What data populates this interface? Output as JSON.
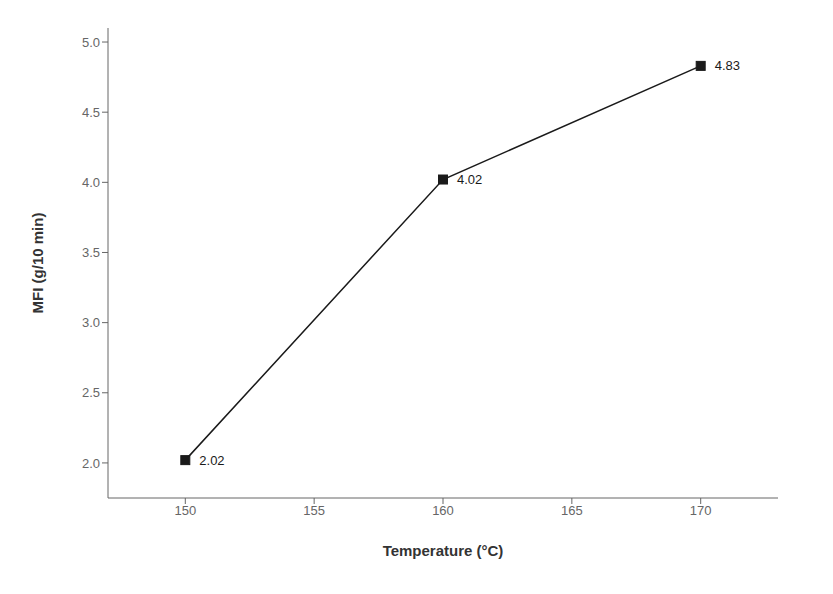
{
  "chart_data": {
    "type": "line",
    "x": [
      150,
      160,
      170
    ],
    "values": [
      2.02,
      4.02,
      4.83
    ],
    "xlabel": "Temperature (°C)",
    "ylabel": "MFI (g/10 min)",
    "xlim": [
      147,
      173
    ],
    "ylim": [
      1.75,
      5.1
    ],
    "xticks": [
      150,
      155,
      160,
      165,
      170
    ],
    "yticks": [
      {
        "value": 2.0,
        "label": "2.0"
      },
      2.5,
      {
        "value": 3.0,
        "label": "3.0"
      },
      3.5,
      {
        "value": 4.0,
        "label": "4.0"
      },
      4.5,
      {
        "value": 5.0,
        "label": "5.0"
      }
    ],
    "color": "#1a1a1a",
    "marker": "square",
    "data_labels": true,
    "grid": false
  }
}
